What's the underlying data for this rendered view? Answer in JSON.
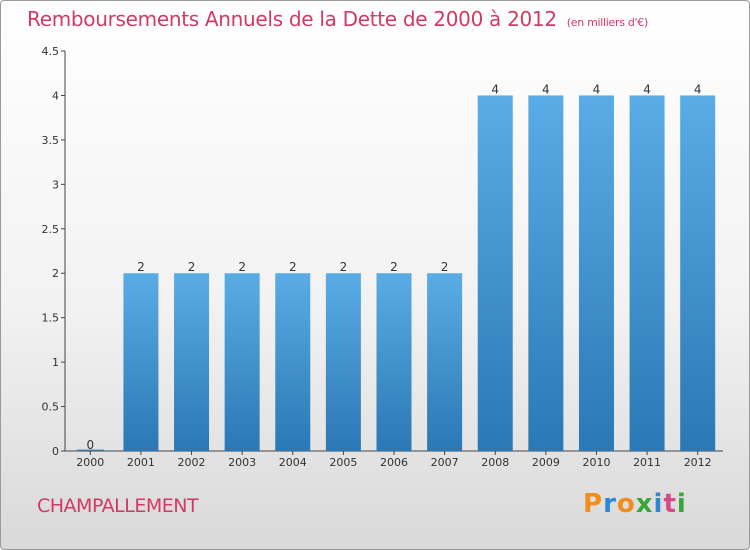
{
  "chart_data": {
    "type": "bar",
    "title": "Remboursements Annuels de la Dette de 2000 à 2012",
    "unit": "(en milliers d'€)",
    "categories": [
      "2000",
      "2001",
      "2002",
      "2003",
      "2004",
      "2005",
      "2006",
      "2007",
      "2008",
      "2009",
      "2010",
      "2011",
      "2012"
    ],
    "values": [
      0,
      2,
      2,
      2,
      2,
      2,
      2,
      2,
      4,
      4,
      4,
      4,
      4
    ],
    "ylim": [
      0,
      4.5
    ],
    "yticks": [
      "0",
      "0.5",
      "1",
      "1.5",
      "2",
      "2.5",
      "3",
      "3.5",
      "4",
      "4.5"
    ],
    "grid": false,
    "bar_color": "#4a9ed9",
    "bar_color_dark": "#2a78b5"
  },
  "commune": "CHAMPALLEMENT",
  "brand": {
    "text": "Proxiti",
    "letters": [
      "P",
      "r",
      "o",
      "x",
      "i",
      "t",
      "i"
    ],
    "colors": [
      "#f28c1a",
      "#2e86d6",
      "#f28c1a",
      "#3aa639",
      "#2e86d6",
      "#d64a8a",
      "#3aa639"
    ]
  },
  "colors": {
    "title": "#d23a66",
    "axis": "#333333"
  }
}
